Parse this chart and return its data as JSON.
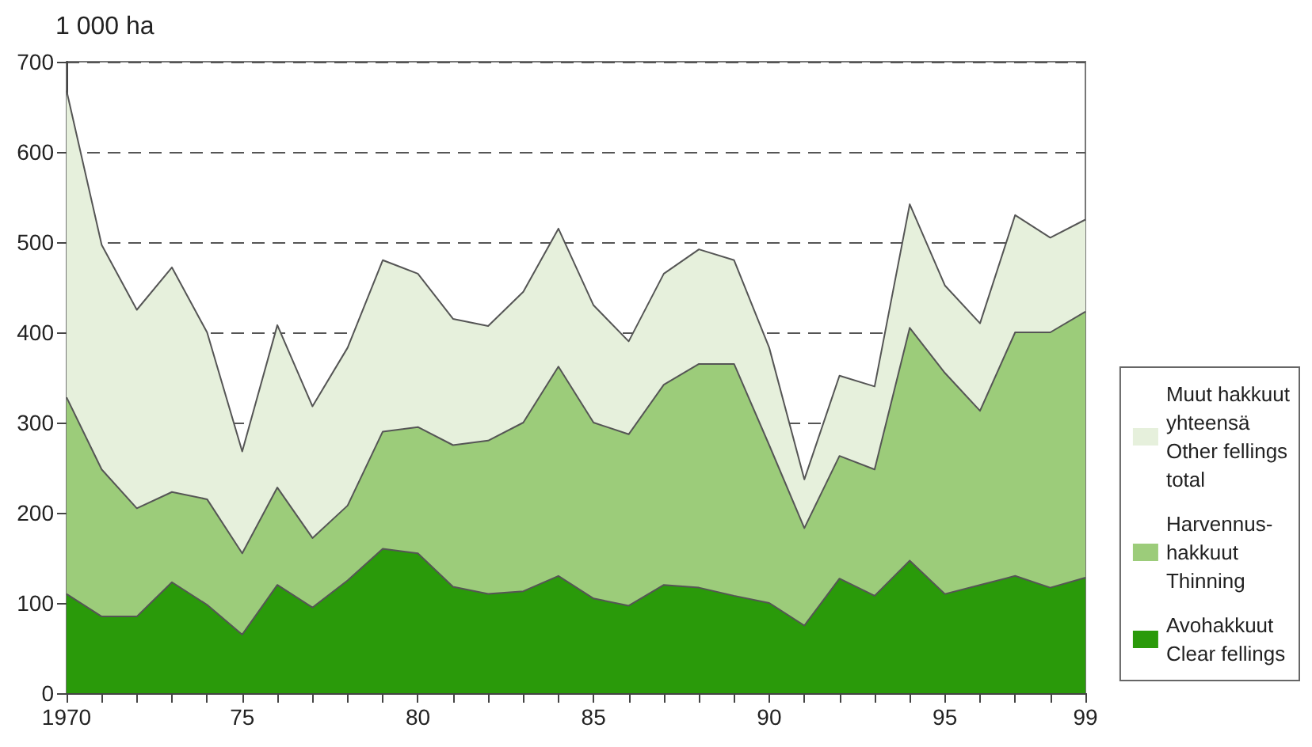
{
  "chart_data": {
    "type": "area",
    "stacked": true,
    "ylabel": "1 000 ha",
    "x": [
      1970,
      1971,
      1972,
      1973,
      1974,
      1975,
      1976,
      1977,
      1978,
      1979,
      1980,
      1981,
      1982,
      1983,
      1984,
      1985,
      1986,
      1987,
      1988,
      1989,
      1990,
      1991,
      1992,
      1993,
      1994,
      1995,
      1996,
      1997,
      1998,
      1999
    ],
    "series": [
      {
        "name": "Avohakkuut\nClear fellings",
        "color": "#2a9a0a",
        "values": [
          110,
          85,
          85,
          123,
          98,
          65,
          120,
          95,
          125,
          160,
          155,
          118,
          110,
          113,
          130,
          105,
          97,
          120,
          117,
          108,
          100,
          75,
          127,
          108,
          147,
          110,
          120,
          130,
          117,
          128
        ]
      },
      {
        "name": "Harvennus-\nhakkuut\nThinning",
        "color": "#9ccc7a",
        "values": [
          218,
          163,
          120,
          100,
          117,
          90,
          108,
          77,
          83,
          130,
          140,
          157,
          170,
          187,
          232,
          195,
          190,
          222,
          248,
          257,
          175,
          108,
          136,
          140,
          258,
          245,
          193,
          270,
          283,
          295
        ]
      },
      {
        "name": "Muut hakkuut\nyhteensä\nOther fellings\ntotal",
        "color": "#e6f0dc",
        "values": [
          340,
          249,
          220,
          249,
          185,
          113,
          180,
          146,
          175,
          190,
          170,
          140,
          127,
          145,
          153,
          130,
          103,
          123,
          127,
          115,
          108,
          54,
          89,
          92,
          137,
          97,
          97,
          130,
          105,
          102
        ]
      }
    ],
    "xlim": [
      1970,
      1999
    ],
    "xticks": [
      {
        "value": 1970,
        "label": "1970"
      },
      {
        "value": 1971,
        "label": null
      },
      {
        "value": 1972,
        "label": null
      },
      {
        "value": 1973,
        "label": null
      },
      {
        "value": 1974,
        "label": null
      },
      {
        "value": 1975,
        "label": "75"
      },
      {
        "value": 1976,
        "label": null
      },
      {
        "value": 1977,
        "label": null
      },
      {
        "value": 1978,
        "label": null
      },
      {
        "value": 1979,
        "label": null
      },
      {
        "value": 1980,
        "label": "80"
      },
      {
        "value": 1981,
        "label": null
      },
      {
        "value": 1982,
        "label": null
      },
      {
        "value": 1983,
        "label": null
      },
      {
        "value": 1984,
        "label": null
      },
      {
        "value": 1985,
        "label": "85"
      },
      {
        "value": 1986,
        "label": null
      },
      {
        "value": 1987,
        "label": null
      },
      {
        "value": 1988,
        "label": null
      },
      {
        "value": 1989,
        "label": null
      },
      {
        "value": 1990,
        "label": "90"
      },
      {
        "value": 1991,
        "label": null
      },
      {
        "value": 1992,
        "label": null
      },
      {
        "value": 1993,
        "label": null
      },
      {
        "value": 1994,
        "label": null
      },
      {
        "value": 1995,
        "label": "95"
      },
      {
        "value": 1996,
        "label": null
      },
      {
        "value": 1997,
        "label": null
      },
      {
        "value": 1998,
        "label": null
      },
      {
        "value": 1999,
        "label": "99"
      }
    ],
    "ylim": [
      0,
      700
    ],
    "yticks": [
      0,
      100,
      200,
      300,
      400,
      500,
      600,
      700
    ],
    "grid": "y",
    "legend": "right",
    "line_style": "solid",
    "marker": "none"
  }
}
